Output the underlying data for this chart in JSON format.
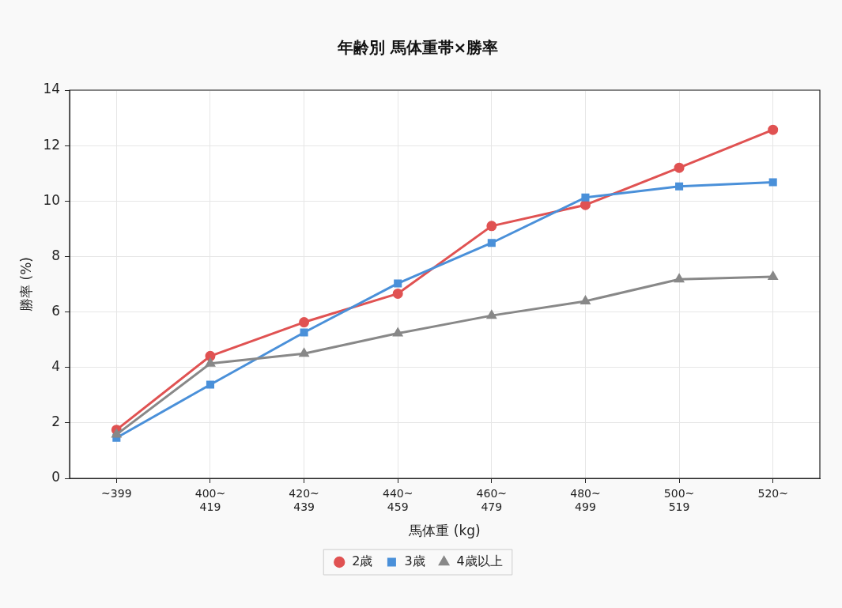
{
  "chart_data": {
    "type": "line",
    "title": "年齢別 馬体重帯×勝率",
    "xlabel": "馬体重 (kg)",
    "ylabel": "勝率 (%)",
    "categories": [
      "~399",
      "400~\n419",
      "420~\n439",
      "440~\n459",
      "460~\n479",
      "480~\n499",
      "500~\n519",
      "520~"
    ],
    "series": [
      {
        "name": "2歳",
        "color": "#e05252",
        "marker": "circle",
        "values": [
          1.75,
          4.41,
          5.63,
          6.66,
          9.1,
          9.86,
          11.2,
          12.57
        ]
      },
      {
        "name": "3歳",
        "color": "#4a90d9",
        "marker": "square",
        "values": [
          1.46,
          3.38,
          5.26,
          7.03,
          8.49,
          10.13,
          10.53,
          10.68
        ]
      },
      {
        "name": "4歳以上",
        "color": "#888888",
        "marker": "triangle",
        "values": [
          1.58,
          4.14,
          4.5,
          5.23,
          5.87,
          6.39,
          7.18,
          7.27
        ]
      }
    ],
    "ylim": [
      0,
      14
    ],
    "yticks": [
      0,
      2,
      4,
      6,
      8,
      10,
      12,
      14
    ],
    "grid": true,
    "legend": "bottom",
    "line_style": "solid"
  }
}
